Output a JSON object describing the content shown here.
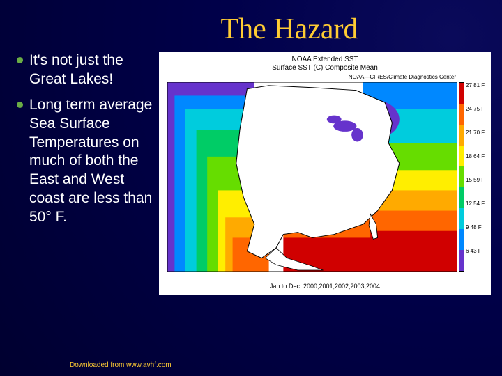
{
  "title": "The Hazard",
  "bullets": [
    "It's not just the Great Lakes!",
    "Long term average Sea Surface Temperatures on much of both the East and West coast are less than 50° F."
  ],
  "figure": {
    "title_line1": "NOAA Extended SST",
    "title_line2": "Surface SST (C) Composite Mean",
    "subtitle": "NOAA—CIRES/Climate Diagnostics Center",
    "bottom_caption": "Jan to Dec: 2000,2001,2002,2003,2004",
    "legend": {
      "segments": [
        {
          "color": "#d00000"
        },
        {
          "color": "#ff6600"
        },
        {
          "color": "#ffaa00"
        },
        {
          "color": "#ffee00"
        },
        {
          "color": "#66dd00"
        },
        {
          "color": "#00cc66"
        },
        {
          "color": "#00ccdd"
        },
        {
          "color": "#0088ff"
        },
        {
          "color": "#6633cc"
        }
      ],
      "labels": [
        {
          "c": "27",
          "f": "81 F"
        },
        {
          "c": "24",
          "f": "75 F"
        },
        {
          "c": "21",
          "f": "70 F"
        },
        {
          "c": "18",
          "f": "64 F"
        },
        {
          "c": "15",
          "f": "59 F"
        },
        {
          "c": "12",
          "f": "54 F"
        },
        {
          "c": "9",
          "f": "48 F"
        },
        {
          "c": "6",
          "f": "43 F"
        }
      ]
    },
    "map_colors": {
      "ocean_warm": "#d00000",
      "ocean_hot": "#ff6600",
      "ocean_midwarm": "#ffee00",
      "ocean_mid": "#66dd00",
      "ocean_cool": "#00ccdd",
      "ocean_cold": "#0088ff",
      "ocean_coldest": "#6633cc",
      "land": "#ffffff",
      "land_outline": "#000000"
    }
  },
  "footer": "Downloaded from www.avhf.com"
}
